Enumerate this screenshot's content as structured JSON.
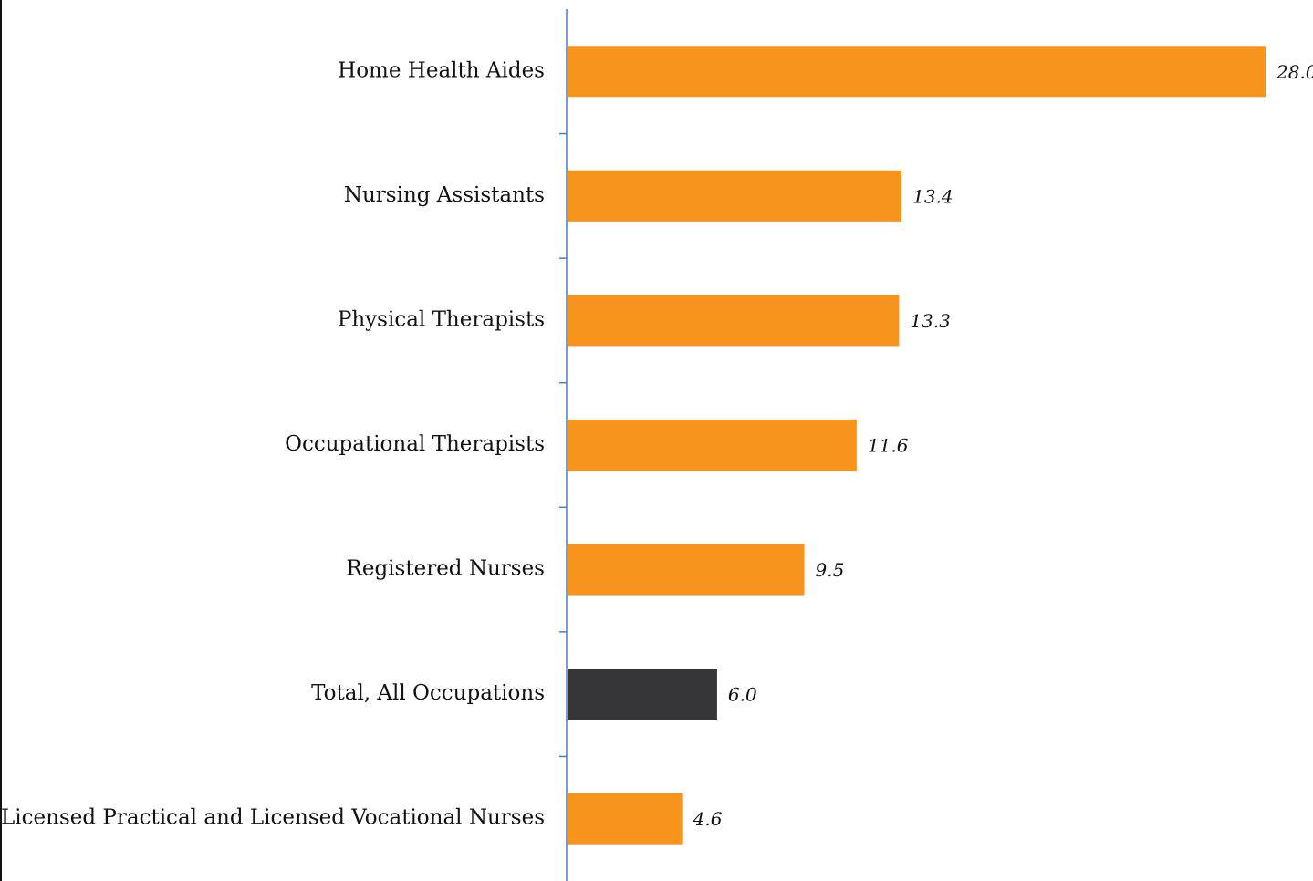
{
  "chart_data": {
    "type": "bar",
    "orientation": "horizontal",
    "categories": [
      "Home Health Aides",
      "Nursing Assistants",
      "Physical Therapists",
      "Occupational Therapists",
      "Registered Nurses",
      "Total, All Occupations",
      "Licensed Practical and Licensed Vocational Nurses"
    ],
    "values": [
      28.0,
      13.4,
      13.3,
      11.6,
      9.5,
      6.0,
      4.6
    ],
    "value_labels": [
      "28.0",
      "13.4",
      "13.3",
      "11.6",
      "9.5",
      "6.0",
      "4.6"
    ],
    "colors": [
      "#f7941e",
      "#f7941e",
      "#f7941e",
      "#f7941e",
      "#f7941e",
      "#363638",
      "#f7941e"
    ]
  }
}
